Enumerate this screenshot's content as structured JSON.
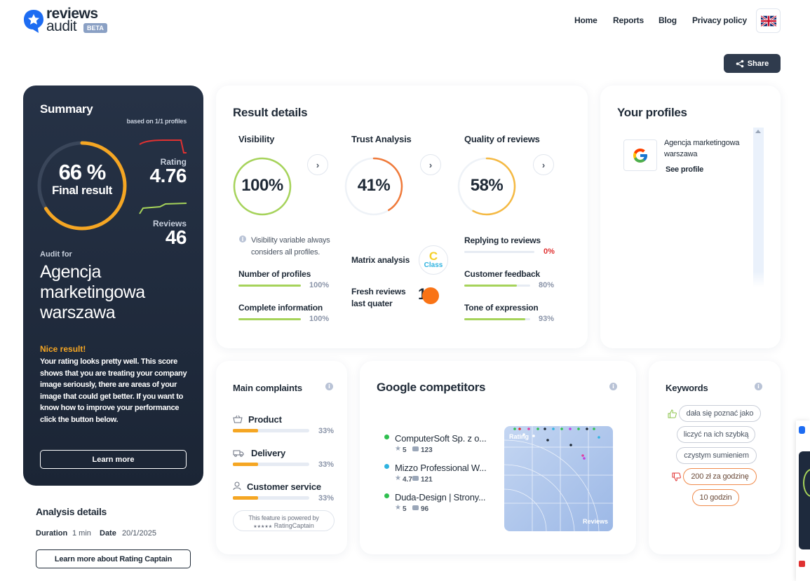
{
  "header": {
    "logo": {
      "line1": "reviews",
      "line2": "audit",
      "badge": "BETA"
    },
    "nav": [
      "Home",
      "Reports",
      "Blog",
      "Privacy policy"
    ],
    "share": "Share"
  },
  "summary": {
    "title": "Summary",
    "based_on": "based on 1/1 profiles",
    "final_percent": "66 %",
    "final_label": "Final result",
    "final_value": 66,
    "rating_label": "Rating",
    "rating_value": "4.76",
    "reviews_label": "Reviews",
    "reviews_value": "46",
    "audit_for": "Audit for",
    "company": "Agencja marketingowa warszawa",
    "nice_title": "Nice result!",
    "nice_text": "Your rating looks pretty well. This score shows that you are treating your company image seriously, there are areas of your image that could get better. If you want to know how to improve your performance click the button below.",
    "learn_more": "Learn more"
  },
  "analysis": {
    "title": "Analysis details",
    "duration_label": "Duration",
    "duration_value": "1 min",
    "date_label": "Date",
    "date_value": "20/1/2025",
    "rc_button": "Learn more about Rating Captain"
  },
  "result": {
    "title": "Result details",
    "visibility": {
      "title": "Visibility",
      "percent": "100%",
      "value": 100,
      "color": "#a6d35a",
      "note": "Visibility variable always considers all profiles.",
      "items": [
        {
          "label": "Number of profiles",
          "pct": "100%",
          "value": 100
        },
        {
          "label": "Complete information",
          "pct": "100%",
          "value": 100
        }
      ]
    },
    "trust": {
      "title": "Trust Analysis",
      "percent": "41%",
      "value": 41,
      "color": "#f07a3a",
      "matrix_label": "Matrix analysis",
      "matrix_grade": "C",
      "matrix_class": "Class",
      "fresh_label": "Fresh reviews last quater",
      "fresh_value": "1"
    },
    "quality": {
      "title": "Quality of reviews",
      "percent": "58%",
      "value": 58,
      "color": "#f5b942",
      "items": [
        {
          "label": "Replying to reviews",
          "pct": "0%",
          "value": 0,
          "color": "#e03131"
        },
        {
          "label": "Customer feedback",
          "pct": "80%",
          "value": 80,
          "color": "#a6d35a"
        },
        {
          "label": "Tone of expression",
          "pct": "93%",
          "value": 93,
          "color": "#a6d35a"
        }
      ]
    }
  },
  "profiles": {
    "title": "Your profiles",
    "items": [
      {
        "name": "Agencja marketingowa warszawa",
        "link": "See profile",
        "icon": "google-icon"
      }
    ]
  },
  "complaints": {
    "title": "Main complaints",
    "items": [
      {
        "label": "Product",
        "pct": "33%",
        "value": 33,
        "icon": "basket-icon"
      },
      {
        "label": "Delivery",
        "pct": "33%",
        "value": 33,
        "icon": "truck-icon"
      },
      {
        "label": "Customer service",
        "pct": "33%",
        "value": 33,
        "icon": "person-icon"
      }
    ],
    "powered_line1": "This feature is powered by",
    "powered_line2": "RatingCaptain"
  },
  "competitors": {
    "title": "Google competitors",
    "items": [
      {
        "name": "ComputerSoft Sp. z o...",
        "rating": "5",
        "reviews": "123",
        "color": "#2fbf4f"
      },
      {
        "name": "Mizzo Professional W...",
        "rating": "4.7",
        "reviews": "121",
        "color": "#2fb3e0"
      },
      {
        "name": "Duda-Design | Strony...",
        "rating": "5",
        "reviews": "96",
        "color": "#2fbf4f"
      }
    ],
    "chart_rating_label": "Rating",
    "chart_reviews_label": "Reviews"
  },
  "keywords": {
    "title": "Keywords",
    "positive": [
      "dała się poznać jako",
      "liczyć na ich szybką",
      "czystym sumieniem"
    ],
    "negative": [
      "200 zł za godzinę",
      "10 godzin"
    ]
  },
  "colors": {
    "navy": "#1e2a3d",
    "green": "#a6d35a",
    "orange": "#f07a3a",
    "amber": "#f5b942",
    "red": "#e03131"
  }
}
